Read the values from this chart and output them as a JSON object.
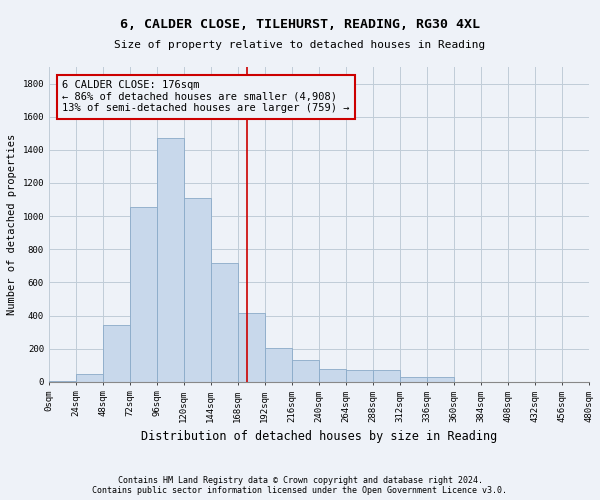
{
  "title1": "6, CALDER CLOSE, TILEHURST, READING, RG30 4XL",
  "title2": "Size of property relative to detached houses in Reading",
  "xlabel": "Distribution of detached houses by size in Reading",
  "ylabel": "Number of detached properties",
  "footnote1": "Contains HM Land Registry data © Crown copyright and database right 2024.",
  "footnote2": "Contains public sector information licensed under the Open Government Licence v3.0.",
  "bar_color": "#c8d8eb",
  "bar_edge_color": "#8aaac8",
  "annotation_box_color": "#cc0000",
  "vline_color": "#cc0000",
  "grid_color": "#c0ccd8",
  "background_color": "#eef2f8",
  "bin_edges": [
    0,
    24,
    48,
    72,
    96,
    120,
    144,
    168,
    192,
    216,
    240,
    264,
    288,
    312,
    336,
    360,
    384,
    408,
    432,
    456,
    480
  ],
  "bar_heights": [
    5,
    50,
    340,
    1055,
    1470,
    1110,
    720,
    415,
    205,
    130,
    75,
    70,
    70,
    30,
    30,
    0,
    0,
    0,
    0,
    0
  ],
  "property_size": 176,
  "annotation_line1": "6 CALDER CLOSE: 176sqm",
  "annotation_line2": "← 86% of detached houses are smaller (4,908)",
  "annotation_line3": "13% of semi-detached houses are larger (759) →",
  "ylim": [
    0,
    1900
  ],
  "yticks": [
    0,
    200,
    400,
    600,
    800,
    1000,
    1200,
    1400,
    1600,
    1800
  ],
  "title1_fontsize": 9.5,
  "title2_fontsize": 8.0,
  "ylabel_fontsize": 7.5,
  "xlabel_fontsize": 8.5,
  "footnote_fontsize": 6.0,
  "tick_fontsize": 6.5,
  "annotation_fontsize": 7.5
}
